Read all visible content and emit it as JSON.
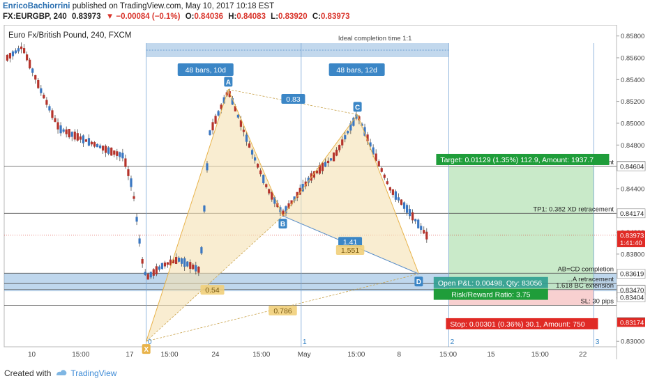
{
  "header": {
    "author": "EnricoBachiorrini",
    "published": "published on TradingView.com, May 10, 2017 10:18 EST",
    "symbol": "FX:EURGBP, 240",
    "last": "0.83973",
    "change": "−0.00084 (−0.1%)",
    "open_label": "O:",
    "open": "0.84036",
    "high_label": "H:",
    "high": "0.84083",
    "low_label": "L:",
    "low": "0.83920",
    "close_label": "C:",
    "close": "0.83973"
  },
  "footer": {
    "created_with": "Created with",
    "brand": "TradingView"
  },
  "chart_data": {
    "type": "candlestick",
    "title": "Euro Fx/British Pound, 240, FXCM",
    "ylim": [
      0.8295,
      0.859
    ],
    "y_ticks": [
      "0.85800",
      "0.85600",
      "0.85400",
      "0.85200",
      "0.85000",
      "0.84800",
      "0.84400",
      "0.84000",
      "0.83800",
      "0.83400",
      "0.83000"
    ],
    "x_ticks": [
      "10",
      "15:00",
      "17",
      "15:00",
      "24",
      "15:00",
      "May",
      "15:00",
      "8",
      "15:00",
      "15",
      "15:00",
      "22"
    ],
    "price_badges": [
      {
        "label": "0.84611",
        "value": 0.84611,
        "style": "white"
      },
      {
        "label": "0.84604",
        "value": 0.84604,
        "style": "white"
      },
      {
        "label": "0.84174",
        "value": 0.84174,
        "style": "white"
      },
      {
        "label": "0.83973",
        "value": 0.83973,
        "style": "red"
      },
      {
        "label": "1:41:40",
        "value": 0.83905,
        "style": "red"
      },
      {
        "label": "0.83619",
        "value": 0.83619,
        "style": "white"
      },
      {
        "label": "0.83475",
        "value": 0.83475,
        "style": "white"
      },
      {
        "label": "0.83470",
        "value": 0.8347,
        "style": "white"
      },
      {
        "label": "0.83404",
        "value": 0.83404,
        "style": "white"
      },
      {
        "label": "0.83177",
        "value": 0.83177,
        "style": "dark"
      },
      {
        "label": "0.83174",
        "value": 0.83174,
        "style": "red"
      }
    ],
    "pattern_points": [
      {
        "label": "X",
        "t": 0.232,
        "v": 0.83
      },
      {
        "label": "A",
        "t": 0.366,
        "v": 0.8531
      },
      {
        "label": "B",
        "t": 0.455,
        "v": 0.8415
      },
      {
        "label": "C",
        "t": 0.577,
        "v": 0.8508
      },
      {
        "label": "D",
        "t": 0.677,
        "v": 0.83619
      }
    ],
    "ratios": [
      {
        "label": "0.83",
        "t": 0.472,
        "v": 0.8521
      },
      {
        "label": "0.54",
        "t": 0.34,
        "v": 0.8346
      },
      {
        "label": "1.41",
        "t": 0.565,
        "v": 0.839
      },
      {
        "label": "1.551",
        "t": 0.565,
        "v": 0.83825
      },
      {
        "label": "0.786",
        "t": 0.455,
        "v": 0.8327
      }
    ],
    "levels": [
      {
        "label": "...ment",
        "v": 0.84604
      },
      {
        "label": "TP1: 0.382 XD retracement",
        "v": 0.84174
      },
      {
        "label": "AB=CD completion",
        "v": 0.83625
      },
      {
        "label": "...A retracement",
        "v": 0.8353
      },
      {
        "label": "1.618 BC extension",
        "v": 0.83475
      },
      {
        "label": "SL: 30 pips",
        "v": 0.8333
      }
    ],
    "range_boxes": [
      {
        "label": "48 bars, 10d"
      },
      {
        "label": "48 bars, 12d"
      },
      {
        "label": "Ideal completion time 1:1"
      }
    ],
    "time_markers": [
      "0",
      "1",
      "2",
      "3"
    ],
    "position": {
      "target": "Target: 0.01129 (1.35%) 112.9, Amount: 1937.7",
      "open_pl": "Open P&L: 0.00498, Qty: 83056",
      "risk_reward": "Risk/Reward Ratio: 3.75",
      "stop": "Stop: 0.00301 (0.36%) 30.1, Amount: 750",
      "entry": 0.83475,
      "target_price": 0.84604,
      "stop_price": 0.83174
    },
    "up_color": "#3a77c2",
    "down_color": "#b5332b",
    "pattern_color": "#e8b34a",
    "box_color": "#a8c8e6"
  }
}
